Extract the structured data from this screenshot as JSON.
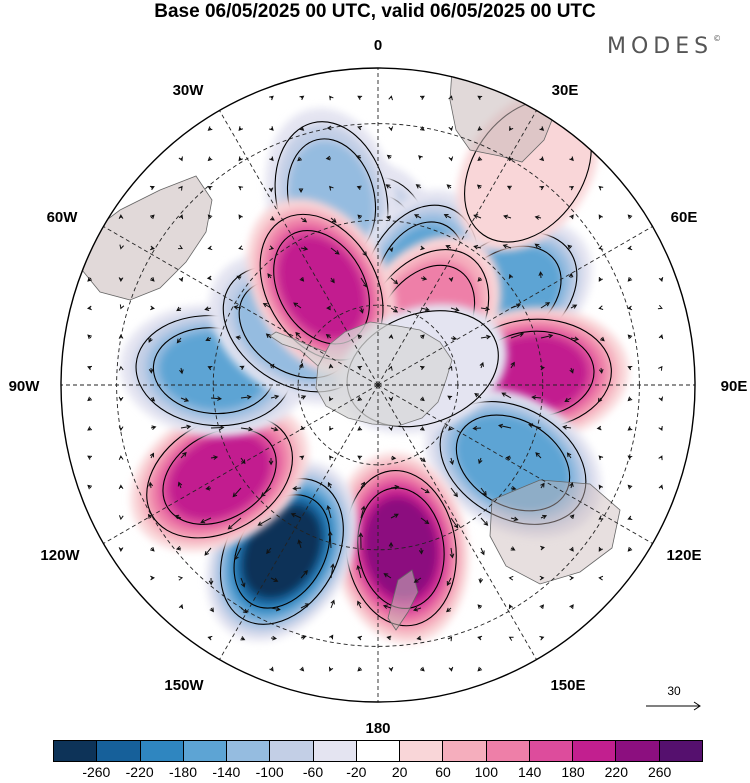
{
  "title": "Base 06/05/2025 00 UTC, valid 06/05/2025 00 UTC",
  "brand": "MODES",
  "brand_mark": "©",
  "map": {
    "projection": "south-polar-stereographic",
    "lon_labels": {
      "top": "0",
      "top_right": "30E",
      "right_upper": "60E",
      "right": "90E",
      "right_lower": "120E",
      "bottom_right": "150E",
      "bottom": "180",
      "bottom_left": "150W",
      "left_lower": "120W",
      "left": "90W",
      "left_upper": "60W",
      "top_left": "30W"
    },
    "anomaly_centers": [
      {
        "lon": 0,
        "lat": -58,
        "value": -100
      },
      {
        "lon": -14,
        "lat": -44,
        "value": -110
      },
      {
        "lon": 22,
        "lat": -62,
        "value": -160
      },
      {
        "lon": 55,
        "lat": -52,
        "value": -180
      },
      {
        "lon": 36,
        "lat": -70,
        "value": 140
      },
      {
        "lon": 86,
        "lat": -52,
        "value": 200
      },
      {
        "lon": 120,
        "lat": -52,
        "value": -180
      },
      {
        "lon": 172,
        "lat": -50,
        "value": 230
      },
      {
        "lon": -150,
        "lat": -44,
        "value": -270
      },
      {
        "lon": -120,
        "lat": -46,
        "value": 200
      },
      {
        "lon": -85,
        "lat": -50,
        "value": -150
      },
      {
        "lon": -56,
        "lat": -65,
        "value": -140
      },
      {
        "lon": -30,
        "lat": -62,
        "value": 200
      },
      {
        "lon": 70,
        "lat": -78,
        "value": -60
      },
      {
        "lon": 35,
        "lat": -30,
        "value": 60
      }
    ],
    "vector_reference": "30"
  },
  "colorbar": {
    "tick_labels": [
      "-260",
      "-220",
      "-180",
      "-140",
      "-100",
      "-60",
      "-20",
      "20",
      "60",
      "100",
      "140",
      "180",
      "220",
      "260"
    ],
    "colors": [
      "#0d3358",
      "#16609a",
      "#2f86c0",
      "#5da4d4",
      "#95bce0",
      "#c3cfe6",
      "#e4e4f1",
      "#ffffff",
      "#f9d6d8",
      "#f5aebd",
      "#ee7fa8",
      "#dd4c9c",
      "#c21f8f",
      "#8c0f7f",
      "#55106e"
    ]
  }
}
